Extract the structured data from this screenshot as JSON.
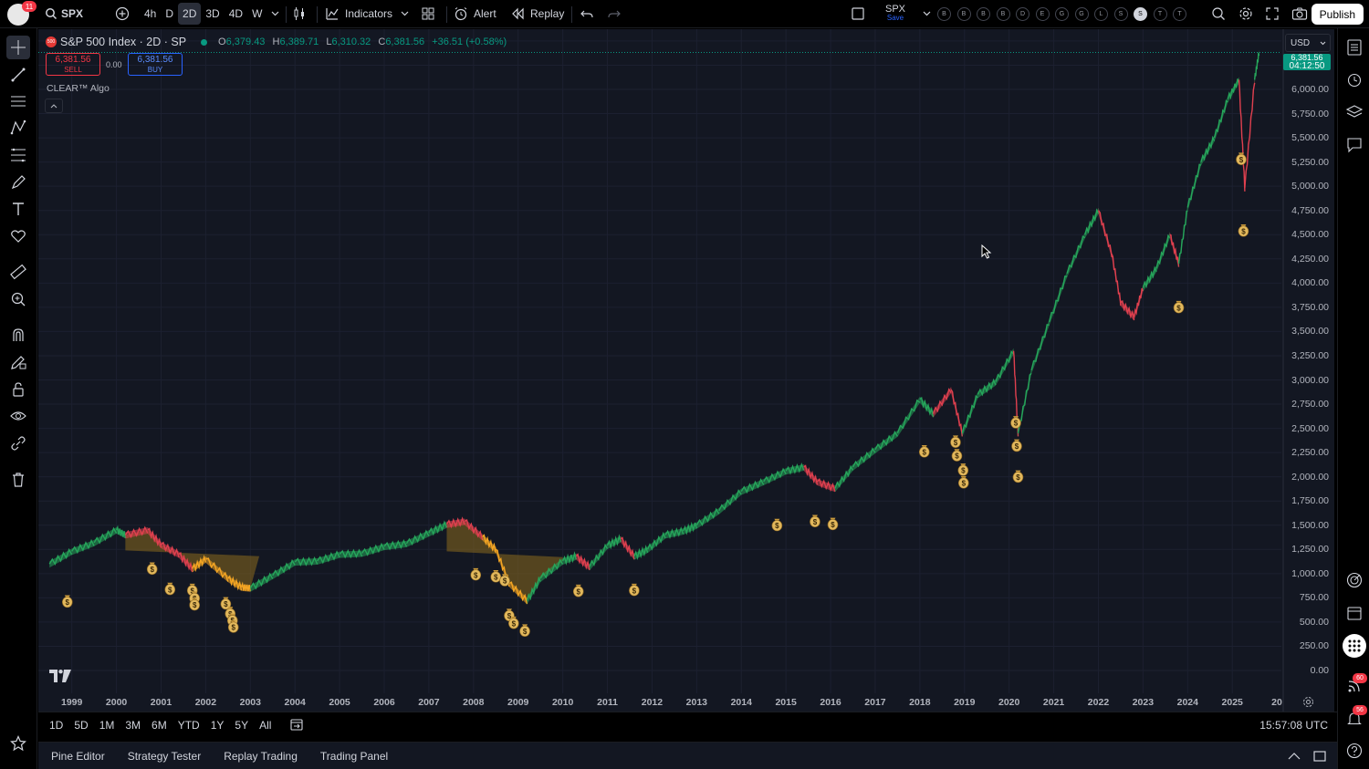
{
  "topbar": {
    "notif_count": "11",
    "symbol": "SPX",
    "intervals": [
      "4h",
      "D",
      "2D",
      "3D",
      "4D",
      "W"
    ],
    "active_interval": "2D",
    "indicators_label": "Indicators",
    "alert_label": "Alert",
    "replay_label": "Replay",
    "watch_symbol": "SPX",
    "watch_status": "Save",
    "watch_pills": [
      "B",
      "B",
      "B",
      "B",
      "D",
      "E",
      "G",
      "G",
      "L",
      "S",
      "S",
      "T",
      "T"
    ],
    "publish_label": "Publish"
  },
  "legend": {
    "title": "S&P 500 Index · 2D · SP",
    "logo_text": "500",
    "o_label": "O",
    "o": "6,379.43",
    "h_label": "H",
    "h": "6,389.71",
    "l_label": "L",
    "l": "6,310.32",
    "c_label": "C",
    "c": "6,381.56",
    "change": "+36.51 (+0.58%)",
    "sell_price": "6,381.56",
    "sell_label": "SELL",
    "spread": "0.00",
    "buy_price": "6,381.56",
    "buy_label": "BUY",
    "indicator_name": "CLEAR™ Algo"
  },
  "price_axis": {
    "currency": "USD",
    "labels": [
      "6,000.00",
      "5,750.00",
      "5,500.00",
      "5,250.00",
      "5,000.00",
      "4,750.00",
      "4,500.00",
      "4,250.00",
      "4,000.00",
      "3,750.00",
      "3,500.00",
      "3,250.00",
      "3,000.00",
      "2,750.00",
      "2,500.00",
      "2,250.00",
      "2,000.00",
      "1,750.00",
      "1,500.00",
      "1,250.00",
      "1,000.00",
      "750.00",
      "500.00",
      "250.00",
      "0.00"
    ],
    "last_price": "6,381.56",
    "countdown": "04:12:50"
  },
  "time_axis": {
    "labels": [
      "1999",
      "2000",
      "2001",
      "2002",
      "2003",
      "2004",
      "2005",
      "2006",
      "2007",
      "2008",
      "2009",
      "2010",
      "2011",
      "2012",
      "2013",
      "2014",
      "2015",
      "2016",
      "2017",
      "2018",
      "2019",
      "2020",
      "2021",
      "2022",
      "2023",
      "2024",
      "2025",
      "20"
    ]
  },
  "range_bar": {
    "ranges": [
      "1D",
      "5D",
      "1M",
      "3M",
      "6M",
      "YTD",
      "1Y",
      "5Y",
      "All"
    ],
    "clock": "15:57:08 UTC"
  },
  "bottom_panel": {
    "tabs": [
      "Pine Editor",
      "Strategy Tester",
      "Replay Trading",
      "Trading Panel"
    ]
  },
  "right_toolbar": {
    "badge_1": "60",
    "badge_2": "56"
  },
  "colors": {
    "background": "#131722",
    "bull": "#26a65b",
    "bear": "#e0404f",
    "caution": "#f5a623",
    "fill": "#8a6a1e",
    "accent": "#089981"
  },
  "chart_data": {
    "type": "line",
    "title": "S&P 500 Index · 2D · SP",
    "x": [
      1998.5,
      1999.0,
      1999.5,
      2000.0,
      2000.2,
      2000.7,
      2001.0,
      2001.4,
      2001.7,
      2002.0,
      2002.5,
      2002.8,
      2003.0,
      2003.5,
      2004.0,
      2004.5,
      2005.0,
      2005.5,
      2006.0,
      2006.5,
      2007.0,
      2007.4,
      2007.8,
      2008.2,
      2008.5,
      2008.8,
      2009.2,
      2009.5,
      2010.0,
      2010.3,
      2010.6,
      2011.0,
      2011.3,
      2011.6,
      2011.9,
      2012.3,
      2012.7,
      2013.0,
      2013.5,
      2014.0,
      2014.5,
      2015.0,
      2015.4,
      2015.7,
      2016.1,
      2016.5,
      2017.0,
      2017.5,
      2018.0,
      2018.3,
      2018.7,
      2018.95,
      2019.3,
      2019.7,
      2020.1,
      2020.2,
      2020.5,
      2020.9,
      2021.3,
      2021.7,
      2022.0,
      2022.3,
      2022.5,
      2022.8,
      2023.0,
      2023.3,
      2023.6,
      2023.8,
      2024.0,
      2024.3,
      2024.6,
      2024.9,
      2025.15,
      2025.28,
      2025.5,
      2025.6
    ],
    "y": [
      1100,
      1230,
      1320,
      1450,
      1400,
      1450,
      1300,
      1200,
      1050,
      1150,
      950,
      860,
      850,
      980,
      1120,
      1130,
      1200,
      1210,
      1280,
      1310,
      1420,
      1510,
      1540,
      1380,
      1250,
      900,
      720,
      950,
      1130,
      1180,
      1070,
      1290,
      1360,
      1180,
      1250,
      1400,
      1440,
      1500,
      1650,
      1850,
      1950,
      2060,
      2100,
      1950,
      1880,
      2100,
      2280,
      2450,
      2800,
      2650,
      2900,
      2450,
      2850,
      2980,
      3300,
      2450,
      3100,
      3600,
      4100,
      4500,
      4750,
      4300,
      3800,
      3650,
      3950,
      4150,
      4500,
      4200,
      4780,
      5250,
      5500,
      5900,
      6100,
      4980,
      6100,
      6381.56
    ],
    "segment_trend": [
      "bull",
      "bull",
      "bull",
      "bull",
      "bear",
      "bear",
      "bear",
      "bear",
      "caution",
      "caution",
      "caution",
      "caution",
      "bull",
      "bull",
      "bull",
      "bull",
      "bull",
      "bull",
      "bull",
      "bull",
      "bull",
      "bear",
      "bear",
      "caution",
      "caution",
      "caution",
      "bull",
      "bull",
      "bull",
      "bear",
      "bull",
      "bull",
      "bear",
      "bull",
      "bull",
      "bull",
      "bull",
      "bull",
      "bull",
      "bull",
      "bull",
      "bull",
      "bear",
      "bear",
      "bull",
      "bull",
      "bull",
      "bull",
      "bull",
      "bear",
      "bear",
      "bull",
      "bull",
      "bull",
      "bear",
      "bull",
      "bull",
      "bull",
      "bull",
      "bull",
      "bear",
      "bear",
      "bear",
      "bear",
      "bull",
      "bull",
      "bear",
      "bull",
      "bull",
      "bull",
      "bull",
      "bull",
      "bear",
      "bear",
      "bull"
    ],
    "signals": [
      {
        "x": 1998.9,
        "y": 720
      },
      {
        "x": 2000.8,
        "y": 1060
      },
      {
        "x": 2001.2,
        "y": 850
      },
      {
        "x": 2001.7,
        "y": 840
      },
      {
        "x": 2001.75,
        "y": 760
      },
      {
        "x": 2001.75,
        "y": 690
      },
      {
        "x": 2002.45,
        "y": 700
      },
      {
        "x": 2002.55,
        "y": 600
      },
      {
        "x": 2002.6,
        "y": 530
      },
      {
        "x": 2002.62,
        "y": 460
      },
      {
        "x": 2008.05,
        "y": 1000
      },
      {
        "x": 2008.5,
        "y": 980
      },
      {
        "x": 2008.7,
        "y": 940
      },
      {
        "x": 2008.8,
        "y": 580
      },
      {
        "x": 2008.9,
        "y": 500
      },
      {
        "x": 2009.15,
        "y": 420
      },
      {
        "x": 2010.35,
        "y": 830
      },
      {
        "x": 2011.6,
        "y": 840
      },
      {
        "x": 2014.8,
        "y": 1510
      },
      {
        "x": 2015.65,
        "y": 1550
      },
      {
        "x": 2016.05,
        "y": 1520
      },
      {
        "x": 2018.1,
        "y": 2270
      },
      {
        "x": 2018.8,
        "y": 2370
      },
      {
        "x": 2018.83,
        "y": 2230
      },
      {
        "x": 2018.97,
        "y": 2080
      },
      {
        "x": 2018.98,
        "y": 1950
      },
      {
        "x": 2020.15,
        "y": 2570
      },
      {
        "x": 2020.17,
        "y": 2330
      },
      {
        "x": 2020.2,
        "y": 2010
      },
      {
        "x": 2023.8,
        "y": 3760
      },
      {
        "x": 2025.2,
        "y": 5290
      },
      {
        "x": 2025.25,
        "y": 4550
      }
    ],
    "ylim": [
      0,
      6750
    ],
    "xlim": [
      1998.25,
      2026.1
    ]
  }
}
